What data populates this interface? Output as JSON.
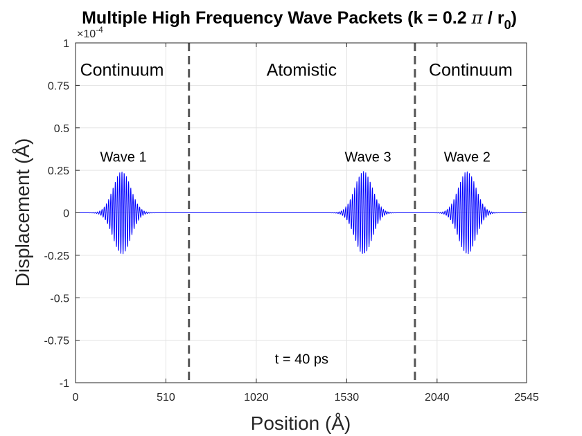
{
  "chart_data": {
    "type": "line",
    "title": {
      "main": "Multiple High Frequency Wave Packets (k = 0.2 ",
      "pi": "π",
      "slash": " / r",
      "sub": "0",
      "close": ")"
    },
    "xlabel": "Position (Å)",
    "ylabel": "Displacement (Å)",
    "xlim": [
      0,
      2545
    ],
    "ylim": [
      -1,
      1
    ],
    "y_exponent": {
      "base": "×10",
      "power": "-4"
    },
    "xticks": [
      0,
      510,
      1020,
      1530,
      2040,
      2545
    ],
    "xtick_labels": [
      "0",
      "510",
      "1020",
      "1530",
      "2040",
      "2545"
    ],
    "yticks": [
      -1,
      -0.75,
      -0.5,
      -0.25,
      0,
      0.25,
      0.5,
      0.75,
      1
    ],
    "ytick_labels": [
      "-1",
      "-0.75",
      "-0.5",
      "-0.25",
      "0",
      "0.25",
      "0.5",
      "0.75",
      "1"
    ],
    "grid": true,
    "series": [
      {
        "name": "displacement",
        "color": "#0000ff",
        "packets": [
          {
            "label": "Wave 1",
            "center": 262,
            "amplitude": 0.245,
            "sigma": 50,
            "wavelength": 12.5
          },
          {
            "label": "Wave 3",
            "center": 1625,
            "amplitude": 0.245,
            "sigma": 50,
            "wavelength": 12.5
          },
          {
            "label": "Wave 2",
            "center": 2210,
            "amplitude": 0.245,
            "sigma": 50,
            "wavelength": 12.5
          }
        ]
      }
    ],
    "boundaries": {
      "x": [
        640,
        1915
      ],
      "color": "#555555"
    },
    "regions": [
      {
        "label": "Continuum",
        "x": 262,
        "y": 0.84
      },
      {
        "label": "Atomistic",
        "x": 1276,
        "y": 0.84
      },
      {
        "label": "Continuum",
        "x": 2230,
        "y": 0.84
      }
    ],
    "annotations": [
      {
        "label": "Wave 1",
        "x": 270,
        "y": 0.33
      },
      {
        "label": "Wave 3",
        "x": 1650,
        "y": 0.33
      },
      {
        "label": "Wave 2",
        "x": 2210,
        "y": 0.33
      },
      {
        "label": "t = 40 ps",
        "x": 1276,
        "y": -0.86
      }
    ]
  }
}
